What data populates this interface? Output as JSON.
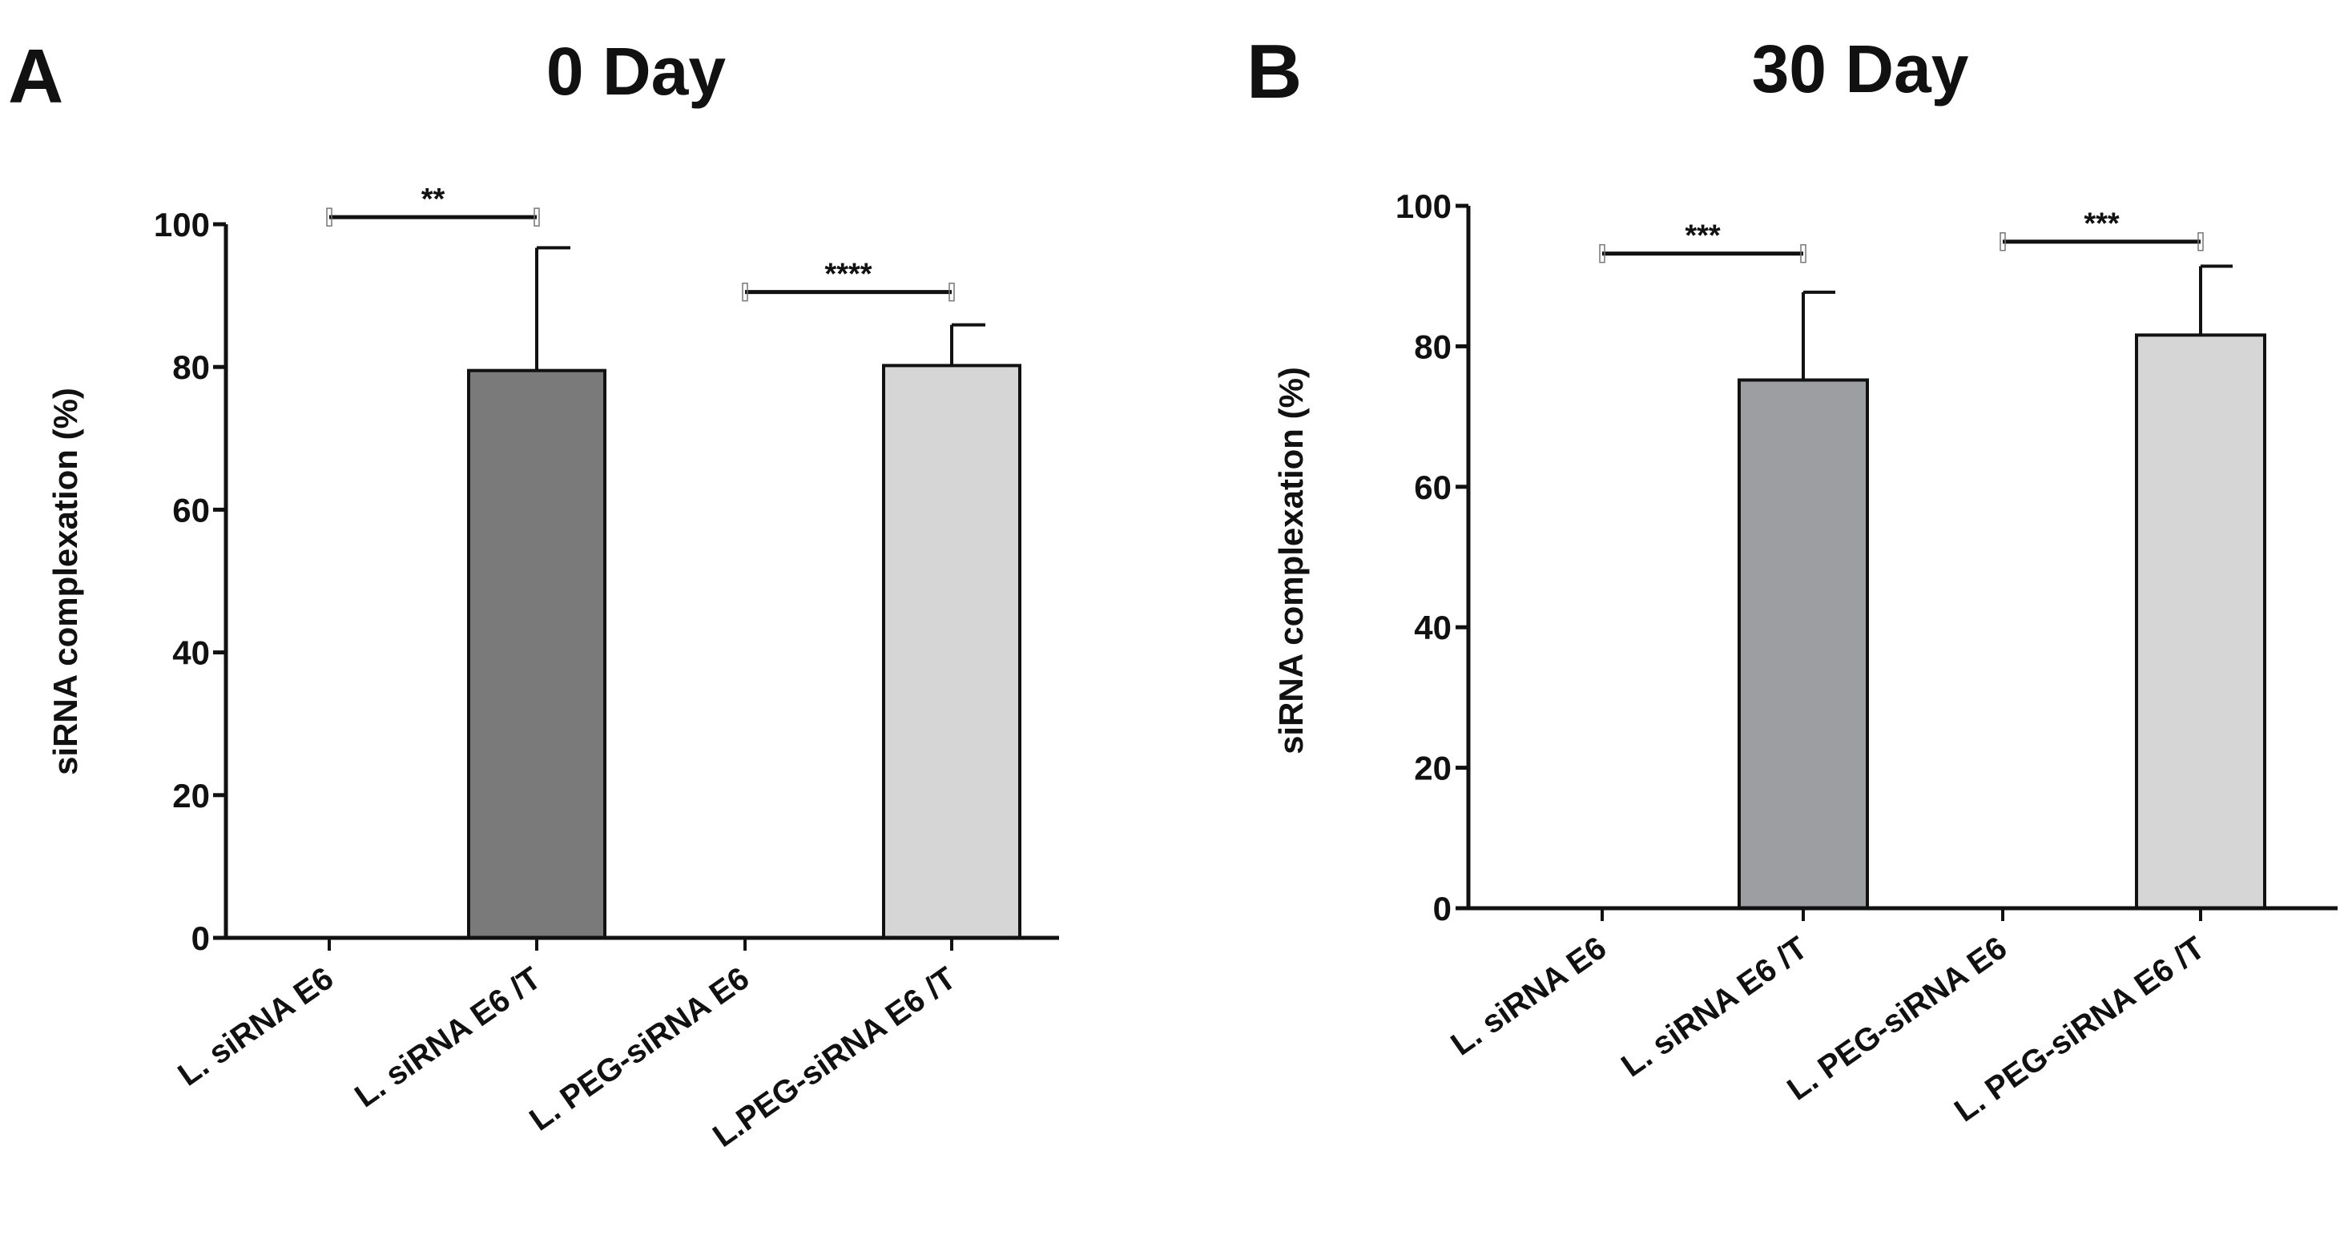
{
  "chart_data": [
    {
      "type": "bar",
      "panel": "A",
      "title": "0 Day",
      "ylabel": "siRNA complexation (%)",
      "xlabel": "",
      "ylim": [
        0,
        100
      ],
      "yticks": [
        0,
        20,
        40,
        60,
        80,
        100
      ],
      "yticks_text": [
        "0",
        "20",
        "40",
        "60",
        "80",
        "100"
      ],
      "grid": false,
      "categories": [
        "L. siRNA E6",
        "L. siRNA E6 /T",
        "L. PEG-siRNA E6",
        "L.PEG-siRNA E6 /T"
      ],
      "values": [
        0,
        79.5,
        0,
        80.2
      ],
      "errors": [
        0,
        17.2,
        0,
        5.7
      ],
      "bar_colors": [
        "#7a7a7a",
        "#7a7a7a",
        "#d6d6d6",
        "#d6d6d6"
      ],
      "significance": [
        {
          "from": 0,
          "to": 1,
          "label": "**",
          "y": 101
        },
        {
          "from": 2,
          "to": 3,
          "label": "****",
          "y": 90.5
        }
      ]
    },
    {
      "type": "bar",
      "panel": "B",
      "title": "30 Day",
      "ylabel": "siRNA complexation (%)",
      "xlabel": "",
      "ylim": [
        0,
        100
      ],
      "yticks": [
        0,
        20,
        40,
        60,
        80,
        100
      ],
      "yticks_text": [
        "0",
        "20",
        "40",
        "60",
        "80",
        "100"
      ],
      "grid": false,
      "categories": [
        "L. siRNA E6",
        "L. siRNA E6 /T",
        "L. PEG-siRNA E6",
        "L. PEG-siRNA E6 /T"
      ],
      "values": [
        0,
        75.2,
        0,
        81.6
      ],
      "errors": [
        0,
        12.5,
        0,
        9.8
      ],
      "bar_colors": [
        "#9d9ea2",
        "#9d9ea2",
        "#d6d6d6",
        "#d6d6d6"
      ],
      "significance": [
        {
          "from": 0,
          "to": 1,
          "label": "***",
          "y": 93.2
        },
        {
          "from": 2,
          "to": 3,
          "label": "***",
          "y": 94.9
        }
      ]
    }
  ]
}
